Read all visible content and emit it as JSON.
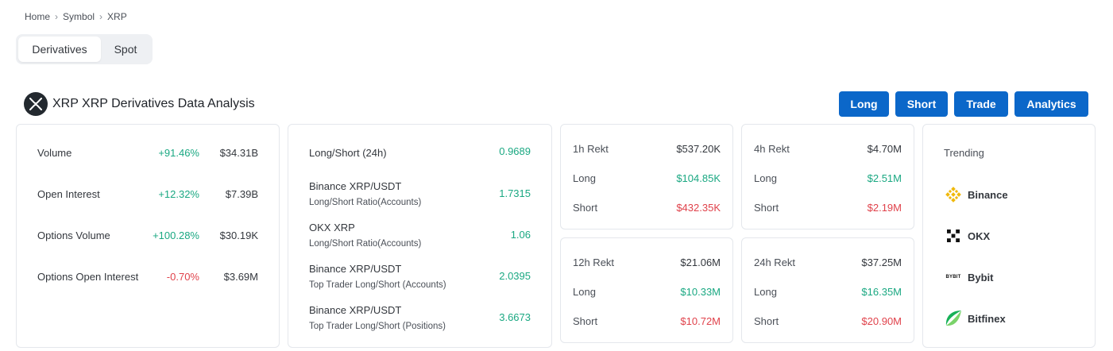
{
  "breadcrumb": {
    "items": [
      "Home",
      "Symbol",
      "XRP"
    ],
    "separator": "›"
  },
  "segment": {
    "active": "Derivatives",
    "inactive": "Spot"
  },
  "header": {
    "title": "XRP XRP Derivatives Data Analysis",
    "logo_icon": "xrp-logo-icon"
  },
  "actions": {
    "long": "Long",
    "short": "Short",
    "trade": "Trade",
    "analytics": "Analytics"
  },
  "overview": {
    "rows": [
      {
        "label": "Volume",
        "change": "+91.46%",
        "value": "$34.31B"
      },
      {
        "label": "Open Interest",
        "change": "+12.32%",
        "value": "$7.39B"
      },
      {
        "label": "Options Volume",
        "change": "+100.28%",
        "value": "$30.19K"
      },
      {
        "label": "Options Open Interest",
        "change": "-0.70%",
        "value": "$3.69M"
      }
    ]
  },
  "longshort": {
    "rows": [
      {
        "label": "Long/Short (24h)",
        "sub": "",
        "value": "0.9689"
      },
      {
        "label": "Binance XRP/USDT",
        "sub": "Long/Short Ratio(Accounts)",
        "value": "1.7315"
      },
      {
        "label": "OKX XRP",
        "sub": "Long/Short Ratio(Accounts)",
        "value": "1.06"
      },
      {
        "label": "Binance XRP/USDT",
        "sub": "Top Trader Long/Short (Accounts)",
        "value": "2.0395"
      },
      {
        "label": "Binance XRP/USDT",
        "sub": "Top Trader Long/Short (Positions)",
        "value": "3.6673"
      }
    ]
  },
  "rekt": {
    "h1": {
      "label": "1h Rekt",
      "total": "$537.20K",
      "long_label": "Long",
      "long": "$104.85K",
      "short_label": "Short",
      "short": "$432.35K"
    },
    "h4": {
      "label": "4h Rekt",
      "total": "$4.70M",
      "long_label": "Long",
      "long": "$2.51M",
      "short_label": "Short",
      "short": "$2.19M"
    },
    "h12": {
      "label": "12h Rekt",
      "total": "$21.06M",
      "long_label": "Long",
      "long": "$10.33M",
      "short_label": "Short",
      "short": "$10.72M"
    },
    "h24": {
      "label": "24h Rekt",
      "total": "$37.25M",
      "long_label": "Long",
      "long": "$16.35M",
      "short_label": "Short",
      "short": "$20.90M"
    }
  },
  "trending": {
    "title": "Trending",
    "exchanges": [
      {
        "name": "Binance",
        "icon": "binance-icon"
      },
      {
        "name": "OKX",
        "icon": "okx-icon"
      },
      {
        "name": "Bybit",
        "icon": "bybit-icon",
        "icon_text": "BYBIT"
      },
      {
        "name": "Bitfinex",
        "icon": "bitfinex-icon"
      }
    ]
  },
  "colors": {
    "accent": "#0b67c9",
    "positive": "#1aa882",
    "negative": "#e0424b"
  }
}
